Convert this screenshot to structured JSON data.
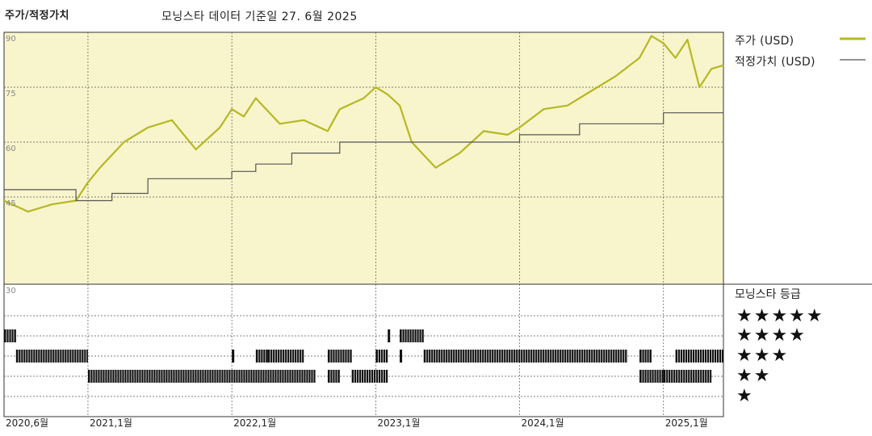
{
  "title": "주가/적정가치",
  "subtitle": "모닝스타 데이터 기준일 27. 6월 2025",
  "legend": {
    "price_label": "주가 (USD)",
    "fair_label": "적정가치 (USD)",
    "price_color": "#b5b823",
    "fair_color": "#555555"
  },
  "rating_title": "모닝스타 등급",
  "rating_rows": [
    "★★★★★",
    "★★★★",
    "★★★",
    "★★",
    "★"
  ],
  "colors": {
    "upper_bg": "#f8f4cc",
    "grid": "#555555",
    "bars": "#111111"
  },
  "chart_data": {
    "type": "line",
    "yticks": [
      "90",
      "75",
      "60",
      "45",
      "30"
    ],
    "ylim": [
      30,
      90
    ],
    "xticks": [
      "2020,6월",
      "2021,1월",
      "2022,1월",
      "2023,1월",
      "2024,1월",
      "2025,1월"
    ],
    "xtick_positions": [
      "2020-06",
      "2021-01",
      "2022-01",
      "2023-01",
      "2024-01",
      "2025-01"
    ],
    "x_range": [
      "2020-06",
      "2025-06"
    ],
    "series": [
      {
        "name": "주가 (USD)",
        "x": [
          "2020-06",
          "2020-08",
          "2020-10",
          "2020-12",
          "2021-01",
          "2021-02",
          "2021-04",
          "2021-06",
          "2021-08",
          "2021-10",
          "2021-12",
          "2022-01",
          "2022-02",
          "2022-03",
          "2022-05",
          "2022-07",
          "2022-09",
          "2022-10",
          "2022-12",
          "2023-01",
          "2023-02",
          "2023-03",
          "2023-04",
          "2023-06",
          "2023-08",
          "2023-10",
          "2023-12",
          "2024-01",
          "2024-03",
          "2024-05",
          "2024-07",
          "2024-09",
          "2024-11",
          "2024-12",
          "2025-01",
          "2025-02",
          "2025-03",
          "2025-04",
          "2025-05",
          "2025-06"
        ],
        "values": [
          44,
          41,
          43,
          44,
          49,
          53,
          60,
          64,
          66,
          58,
          64,
          69,
          67,
          72,
          65,
          66,
          63,
          69,
          72,
          75,
          73,
          70,
          60,
          53,
          57,
          63,
          62,
          64,
          69,
          70,
          74,
          78,
          83,
          89,
          87,
          83,
          88,
          75,
          80,
          81
        ]
      },
      {
        "name": "적정가치 (USD)",
        "x": [
          "2020-06",
          "2020-12",
          "2021-03",
          "2021-06",
          "2022-01",
          "2022-03",
          "2022-06",
          "2022-10",
          "2023-10",
          "2024-01",
          "2024-06",
          "2025-01",
          "2025-06"
        ],
        "values": [
          47,
          44,
          46,
          50,
          52,
          54,
          57,
          60,
          60,
          62,
          65,
          68,
          73
        ]
      }
    ],
    "rating_bars": [
      {
        "stars": 4,
        "ranges": [
          [
            "2020-06",
            "2020-07"
          ],
          [
            "2023-02",
            "2023-02"
          ],
          [
            "2023-03",
            "2023-05"
          ]
        ]
      },
      {
        "stars": 3,
        "ranges": [
          [
            "2020-07",
            "2021-01"
          ],
          [
            "2022-01",
            "2022-01"
          ],
          [
            "2022-03",
            "2022-04"
          ],
          [
            "2022-04",
            "2022-07"
          ],
          [
            "2022-09",
            "2022-11"
          ],
          [
            "2023-01",
            "2023-02"
          ],
          [
            "2023-03",
            "2023-03"
          ],
          [
            "2023-05",
            "2024-10"
          ],
          [
            "2024-11",
            "2024-12"
          ],
          [
            "2025-02",
            "2025-06"
          ]
        ]
      },
      {
        "stars": 2,
        "ranges": [
          [
            "2021-01",
            "2022-08"
          ],
          [
            "2022-09",
            "2022-10"
          ],
          [
            "2022-11",
            "2023-02"
          ],
          [
            "2024-11",
            "2025-01"
          ],
          [
            "2025-01",
            "2025-05"
          ]
        ]
      }
    ]
  }
}
